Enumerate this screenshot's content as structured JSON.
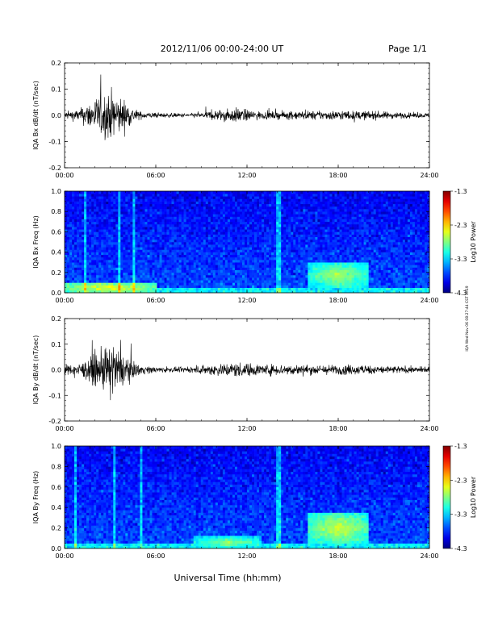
{
  "header": {
    "title": "2012/11/06  00:00-24:00 UT",
    "page": "Page 1/1"
  },
  "xaxis": {
    "title": "Universal Time (hh:mm)",
    "ticks": [
      "00:00",
      "06:00",
      "12:00",
      "18:00",
      "24:00"
    ]
  },
  "side_note": "IQA Wed Nov 06 08:27:44 CST 2019",
  "chart_data": [
    {
      "type": "line",
      "ylabel": "IQA Bx dB/dt (nT/sec)",
      "xlim": [
        0,
        24
      ],
      "ylim": [
        -0.2,
        0.2
      ],
      "yticks": [
        "0.2",
        "0.1",
        "0.0",
        "-0.1",
        "-0.2"
      ],
      "envelope": {
        "hours": [
          0,
          1,
          1.5,
          2,
          2.5,
          3,
          3.5,
          4,
          4.5,
          5,
          5.5,
          6,
          7,
          8,
          9,
          9.5,
          10,
          10.5,
          11,
          11.5,
          12,
          13,
          14,
          15,
          16,
          17,
          18,
          19,
          20,
          21,
          22,
          23,
          24
        ],
        "amplitude": [
          0.03,
          0.05,
          0.1,
          0.14,
          0.18,
          0.2,
          0.16,
          0.12,
          0.06,
          0.03,
          0.025,
          0.02,
          0.018,
          0.015,
          0.02,
          0.035,
          0.045,
          0.05,
          0.055,
          0.06,
          0.045,
          0.03,
          0.03,
          0.035,
          0.035,
          0.035,
          0.04,
          0.035,
          0.035,
          0.03,
          0.025,
          0.02,
          0.02
        ]
      }
    },
    {
      "type": "heatmap",
      "ylabel": "IQA Bx Freq (Hz)",
      "xlim": [
        0,
        24
      ],
      "ylim": [
        0,
        1.0
      ],
      "yticks": [
        "1.0",
        "0.8",
        "0.6",
        "0.4",
        "0.2",
        "0.0"
      ],
      "colorbar": {
        "label": "Log10 Power",
        "range": [
          -4.3,
          -1.3
        ],
        "ticks": [
          "-1.3",
          "-2.3",
          "-3.3",
          "-4.3"
        ]
      },
      "enhancements": [
        {
          "hours": [
            16,
            20
          ],
          "freq_hz": [
            0.05,
            0.3
          ],
          "level": -2.6
        },
        {
          "hours": [
            0,
            6
          ],
          "freq_hz": [
            0,
            0.1
          ],
          "level": -2.4
        }
      ]
    },
    {
      "type": "line",
      "ylabel": "IQA By dB/dt (nT/sec)",
      "xlim": [
        0,
        24
      ],
      "ylim": [
        -0.2,
        0.2
      ],
      "yticks": [
        "0.2",
        "0.1",
        "0.0",
        "-0.1",
        "-0.2"
      ],
      "envelope": {
        "hours": [
          0,
          1,
          1.5,
          2,
          2.5,
          3,
          3.5,
          4,
          4.5,
          5,
          5.5,
          6,
          7,
          8,
          9,
          9.5,
          10,
          10.5,
          11,
          11.5,
          12,
          13,
          14,
          15,
          16,
          17,
          18,
          19,
          20,
          21,
          22,
          23,
          24
        ],
        "amplitude": [
          0.04,
          0.05,
          0.09,
          0.13,
          0.17,
          0.2,
          0.17,
          0.12,
          0.07,
          0.04,
          0.03,
          0.025,
          0.02,
          0.02,
          0.03,
          0.045,
          0.05,
          0.055,
          0.06,
          0.06,
          0.055,
          0.045,
          0.045,
          0.045,
          0.04,
          0.04,
          0.04,
          0.04,
          0.035,
          0.035,
          0.03,
          0.025,
          0.025
        ]
      }
    },
    {
      "type": "heatmap",
      "ylabel": "IQA By Freq (Hz)",
      "xlim": [
        0,
        24
      ],
      "ylim": [
        0,
        1.0
      ],
      "yticks": [
        "1.0",
        "0.8",
        "0.6",
        "0.4",
        "0.2",
        "0.0"
      ],
      "colorbar": {
        "label": "Log10 Power",
        "range": [
          -4.3,
          -1.3
        ],
        "ticks": [
          "-1.3",
          "-2.3",
          "-3.3",
          "-4.3"
        ]
      },
      "enhancements": [
        {
          "hours": [
            16,
            20
          ],
          "freq_hz": [
            0.05,
            0.35
          ],
          "level": -2.5
        },
        {
          "hours": [
            8.5,
            13
          ],
          "freq_hz": [
            0,
            0.12
          ],
          "level": -2.7
        }
      ]
    }
  ]
}
